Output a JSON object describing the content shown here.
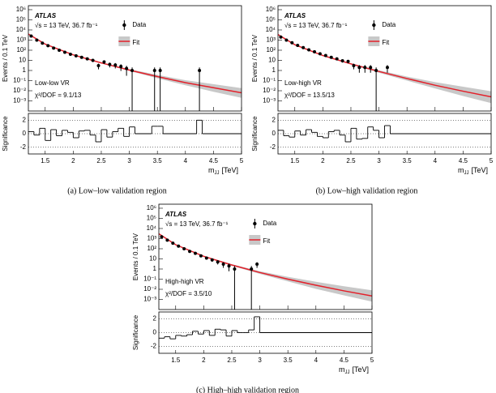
{
  "chart_data": [
    {
      "type": "scatter",
      "caption": "(a) Low–low validation region",
      "experiment": "ATLAS",
      "energy_lumi": "√s = 13 TeV, 36.7 fb⁻¹",
      "region": "Low-low VR",
      "chi2": "χ²/DOF = 9.1/13",
      "ylabel": "Events / 0.1 TeV",
      "xlabel": "m",
      "xlabel_sub": "JJ",
      "xlabel_unit": "[TeV]",
      "yscale": "log",
      "legend": "upper center",
      "xlim": [
        1.2,
        5
      ],
      "xticks": [
        1.5,
        2,
        2.5,
        3,
        3.5,
        4,
        4.5,
        5
      ],
      "ylim": [
        0.0001,
        2500000
      ],
      "yticks": [
        {
          "value": 1000000,
          "label": "10⁶"
        },
        {
          "value": 100000,
          "label": "10⁵"
        },
        {
          "value": 10000,
          "label": "10⁴"
        },
        {
          "value": 1000,
          "label": "10³"
        },
        {
          "value": 100,
          "label": "10²"
        },
        10,
        1,
        {
          "value": 0.1,
          "label": "10⁻¹"
        },
        {
          "value": 0.01,
          "label": "10⁻²"
        },
        {
          "value": 0.001,
          "label": "10⁻³"
        }
      ],
      "data": {
        "name": "Data",
        "color": "#000000",
        "x": [
          1.25,
          1.35,
          1.45,
          1.55,
          1.65,
          1.75,
          1.85,
          1.95,
          2.05,
          2.15,
          2.25,
          2.35,
          2.45,
          2.55,
          2.65,
          2.75,
          2.85,
          2.95,
          3.05,
          3.45,
          3.55,
          4.25
        ],
        "values": [
          2500,
          1000,
          500,
          280,
          160,
          100,
          63,
          40,
          28,
          20,
          14,
          10,
          3,
          7,
          4,
          3.5,
          2.5,
          1.6,
          1,
          1,
          1,
          1
        ],
        "errors": [
          50,
          32,
          22,
          17,
          13,
          10,
          8,
          6.3,
          5.3,
          4.5,
          3.7,
          3.2,
          1.7,
          2.6,
          2,
          1.9,
          1.6,
          1.3,
          1,
          1,
          1,
          1
        ]
      },
      "fit": {
        "name": "Fit",
        "color": "#e3202a",
        "band_color": "#c8c8c8",
        "x": [
          1.2,
          1.5,
          2,
          2.5,
          3,
          3.5,
          4,
          4.5,
          5
        ],
        "values": [
          4000,
          400,
          35,
          5.6,
          1.1,
          0.25,
          0.063,
          0.02,
          0.0063
        ],
        "band_low": [
          3600,
          380,
          32,
          5,
          0.9,
          0.17,
          0.035,
          0.008,
          0.002
        ],
        "band_high": [
          4400,
          420,
          38,
          6.3,
          1.35,
          0.37,
          0.11,
          0.045,
          0.018
        ]
      },
      "significance": {
        "ylabel": "Significance",
        "ylim": [
          -3,
          3
        ],
        "yticks": [
          -2,
          0,
          2
        ],
        "bins": [
          1.2,
          1.3,
          1.4,
          1.5,
          1.6,
          1.7,
          1.8,
          1.9,
          2.0,
          2.1,
          2.2,
          2.3,
          2.4,
          2.5,
          2.6,
          2.7,
          2.8,
          2.9,
          3.0,
          3.1,
          3.4,
          3.5,
          3.6,
          4.2,
          4.3,
          5.0
        ],
        "values": [
          0.3,
          -0.2,
          0.8,
          -1.0,
          0.6,
          -0.3,
          0.5,
          0.2,
          -0.6,
          0.4,
          0.5,
          -0.2,
          -1.2,
          0.6,
          -0.5,
          0.3,
          0.8,
          -0.4,
          1.0,
          0,
          1.1,
          1.1,
          0,
          2.0,
          0
        ]
      }
    },
    {
      "type": "scatter",
      "caption": "(b) Low–high validation region",
      "experiment": "ATLAS",
      "energy_lumi": "√s = 13 TeV, 36.7 fb⁻¹",
      "region": "Low-high VR",
      "chi2": "χ²/DOF = 13.5/13",
      "ylabel": "Events / 0.1 TeV",
      "xlabel": "m",
      "xlabel_sub": "JJ",
      "xlabel_unit": "[TeV]",
      "yscale": "log",
      "legend": "upper center",
      "xlim": [
        1.2,
        5
      ],
      "xticks": [
        1.5,
        2,
        2.5,
        3,
        3.5,
        4,
        4.5,
        5
      ],
      "ylim": [
        0.0001,
        2500000
      ],
      "yticks": [
        {
          "value": 1000000,
          "label": "10⁶"
        },
        {
          "value": 100000,
          "label": "10⁵"
        },
        {
          "value": 10000,
          "label": "10⁴"
        },
        {
          "value": 1000,
          "label": "10³"
        },
        {
          "value": 100,
          "label": "10²"
        },
        10,
        1,
        {
          "value": 0.1,
          "label": "10⁻¹"
        },
        {
          "value": 0.01,
          "label": "10⁻²"
        },
        {
          "value": 0.001,
          "label": "10⁻³"
        }
      ],
      "data": {
        "name": "Data",
        "color": "#000000",
        "x": [
          1.25,
          1.35,
          1.45,
          1.55,
          1.65,
          1.75,
          1.85,
          1.95,
          2.05,
          2.15,
          2.25,
          2.35,
          2.45,
          2.55,
          2.65,
          2.75,
          2.85,
          2.95,
          3.15
        ],
        "values": [
          2000,
          1000,
          550,
          300,
          180,
          110,
          70,
          45,
          30,
          20,
          14,
          9,
          8,
          3,
          2,
          2,
          2,
          1,
          2
        ],
        "errors": [
          45,
          32,
          23,
          17,
          13,
          10.5,
          8.4,
          6.7,
          5.5,
          4.5,
          3.7,
          3,
          2.8,
          1.7,
          1.4,
          1.4,
          1.4,
          1,
          1.4
        ]
      },
      "fit": {
        "name": "Fit",
        "color": "#e3202a",
        "band_color": "#c8c8c8",
        "x": [
          1.2,
          1.5,
          2,
          2.5,
          3,
          3.5,
          4,
          4.5,
          5
        ],
        "values": [
          3500,
          350,
          30,
          4.5,
          0.8,
          0.16,
          0.035,
          0.009,
          0.0025
        ],
        "band_low": [
          3200,
          330,
          27,
          3.9,
          0.6,
          0.1,
          0.017,
          0.003,
          0.0006
        ],
        "band_high": [
          3800,
          370,
          33,
          5.2,
          1.05,
          0.25,
          0.07,
          0.025,
          0.009
        ]
      },
      "significance": {
        "ylabel": "Significance",
        "ylim": [
          -3,
          3
        ],
        "yticks": [
          -2,
          0,
          2
        ],
        "bins": [
          1.2,
          1.3,
          1.4,
          1.5,
          1.6,
          1.7,
          1.8,
          1.9,
          2.0,
          2.1,
          2.2,
          2.3,
          2.4,
          2.5,
          2.6,
          2.7,
          2.8,
          2.9,
          3.0,
          3.1,
          3.2,
          5.0
        ],
        "values": [
          0.5,
          -0.3,
          -0.5,
          0.4,
          -0.2,
          0.6,
          0.2,
          -0.4,
          -0.6,
          0.3,
          0.5,
          -0.2,
          -1.2,
          0.8,
          -0.8,
          -0.7,
          1.0,
          0.5,
          -0.6,
          1.2,
          0
        ]
      }
    },
    {
      "type": "scatter",
      "caption": "(c) High–high validation region",
      "experiment": "ATLAS",
      "energy_lumi": "√s = 13 TeV, 36.7 fb⁻¹",
      "region": "High-high VR",
      "chi2": "χ²/DOF = 3.5/10",
      "ylabel": "Events / 0.1 TeV",
      "xlabel": "m",
      "xlabel_sub": "JJ",
      "xlabel_unit": "[TeV]",
      "yscale": "log",
      "legend": "upper center",
      "xlim": [
        1.2,
        5
      ],
      "xticks": [
        1.5,
        2,
        2.5,
        3,
        3.5,
        4,
        4.5,
        5
      ],
      "ylim": [
        0.0001,
        2500000
      ],
      "yticks": [
        {
          "value": 1000000,
          "label": "10⁶"
        },
        {
          "value": 100000,
          "label": "10⁵"
        },
        {
          "value": 10000,
          "label": "10⁴"
        },
        {
          "value": 1000,
          "label": "10³"
        },
        {
          "value": 100,
          "label": "10²"
        },
        10,
        1,
        {
          "value": 0.1,
          "label": "10⁻¹"
        },
        {
          "value": 0.01,
          "label": "10⁻²"
        },
        {
          "value": 0.001,
          "label": "10⁻³"
        }
      ],
      "data": {
        "name": "Data",
        "color": "#000000",
        "x": [
          1.25,
          1.35,
          1.45,
          1.55,
          1.65,
          1.75,
          1.85,
          1.95,
          2.05,
          2.15,
          2.25,
          2.35,
          2.45,
          2.55,
          2.85,
          2.95
        ],
        "values": [
          1500,
          700,
          350,
          180,
          100,
          55,
          35,
          20,
          12,
          8,
          5,
          3,
          2,
          1,
          1,
          3
        ],
        "errors": [
          39,
          26,
          19,
          13,
          10,
          7.4,
          5.9,
          4.5,
          3.5,
          2.8,
          2.2,
          1.7,
          1.4,
          1,
          1,
          1.7
        ]
      },
      "fit": {
        "name": "Fit",
        "color": "#e3202a",
        "band_color": "#c8c8c8",
        "x": [
          1.2,
          1.5,
          2,
          2.5,
          3,
          3.5,
          4,
          4.5,
          5
        ],
        "values": [
          3000,
          250,
          18,
          2.5,
          0.45,
          0.1,
          0.025,
          0.007,
          0.0022
        ],
        "band_low": [
          2700,
          230,
          16,
          2.1,
          0.33,
          0.06,
          0.011,
          0.0025,
          0.0006
        ],
        "band_high": [
          3300,
          270,
          20,
          3,
          0.6,
          0.17,
          0.055,
          0.02,
          0.008
        ]
      },
      "significance": {
        "ylabel": "Significance",
        "ylim": [
          -3,
          3
        ],
        "yticks": [
          -2,
          0,
          2
        ],
        "bins": [
          1.2,
          1.3,
          1.4,
          1.5,
          1.6,
          1.7,
          1.8,
          1.9,
          2.0,
          2.1,
          2.2,
          2.3,
          2.4,
          2.5,
          2.6,
          2.7,
          2.8,
          2.9,
          3.0,
          5.0
        ],
        "values": [
          -0.8,
          -0.6,
          -0.9,
          -0.4,
          -0.5,
          -0.3,
          0.2,
          -0.2,
          0.3,
          -0.4,
          0.5,
          0.4,
          -0.5,
          0.3,
          0,
          0,
          0.4,
          2.3,
          0
        ]
      }
    }
  ]
}
